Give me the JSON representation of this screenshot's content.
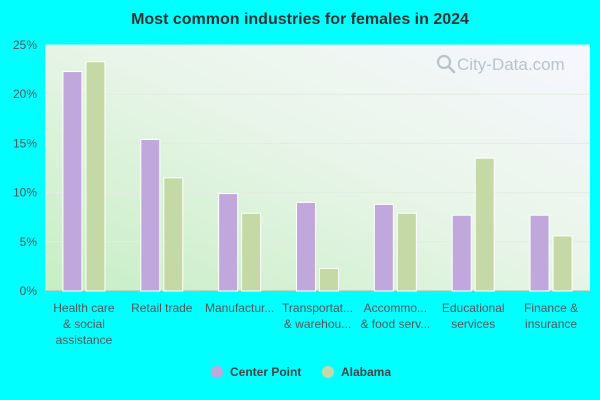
{
  "chart_data": {
    "type": "bar",
    "title": "Most common industries for females in 2024",
    "xlabel": "",
    "ylabel": "",
    "categories": [
      [
        "Health care",
        "& social",
        "assistance"
      ],
      [
        "Retail trade"
      ],
      [
        "Manufactur..."
      ],
      [
        "Transportat...",
        "& warehou..."
      ],
      [
        "Accommo...",
        "& food serv..."
      ],
      [
        "Educational",
        "services"
      ],
      [
        "Finance &",
        "insurance"
      ]
    ],
    "series": [
      {
        "name": "Center Point",
        "color": "#c0a8dc",
        "values": [
          22.3,
          15.4,
          9.9,
          9.0,
          8.8,
          7.7,
          7.7
        ]
      },
      {
        "name": "Alabama",
        "color": "#c4d9a6",
        "values": [
          23.3,
          11.5,
          7.9,
          2.3,
          7.9,
          13.5,
          5.6
        ]
      }
    ],
    "ylim": [
      0,
      25
    ],
    "yticks": [
      0,
      5,
      10,
      15,
      20,
      25
    ],
    "ytick_labels": [
      "0%",
      "5%",
      "10%",
      "15%",
      "20%",
      "25%"
    ],
    "grid": true,
    "legend_position": "bottom-center"
  },
  "watermark": "City-Data.com"
}
